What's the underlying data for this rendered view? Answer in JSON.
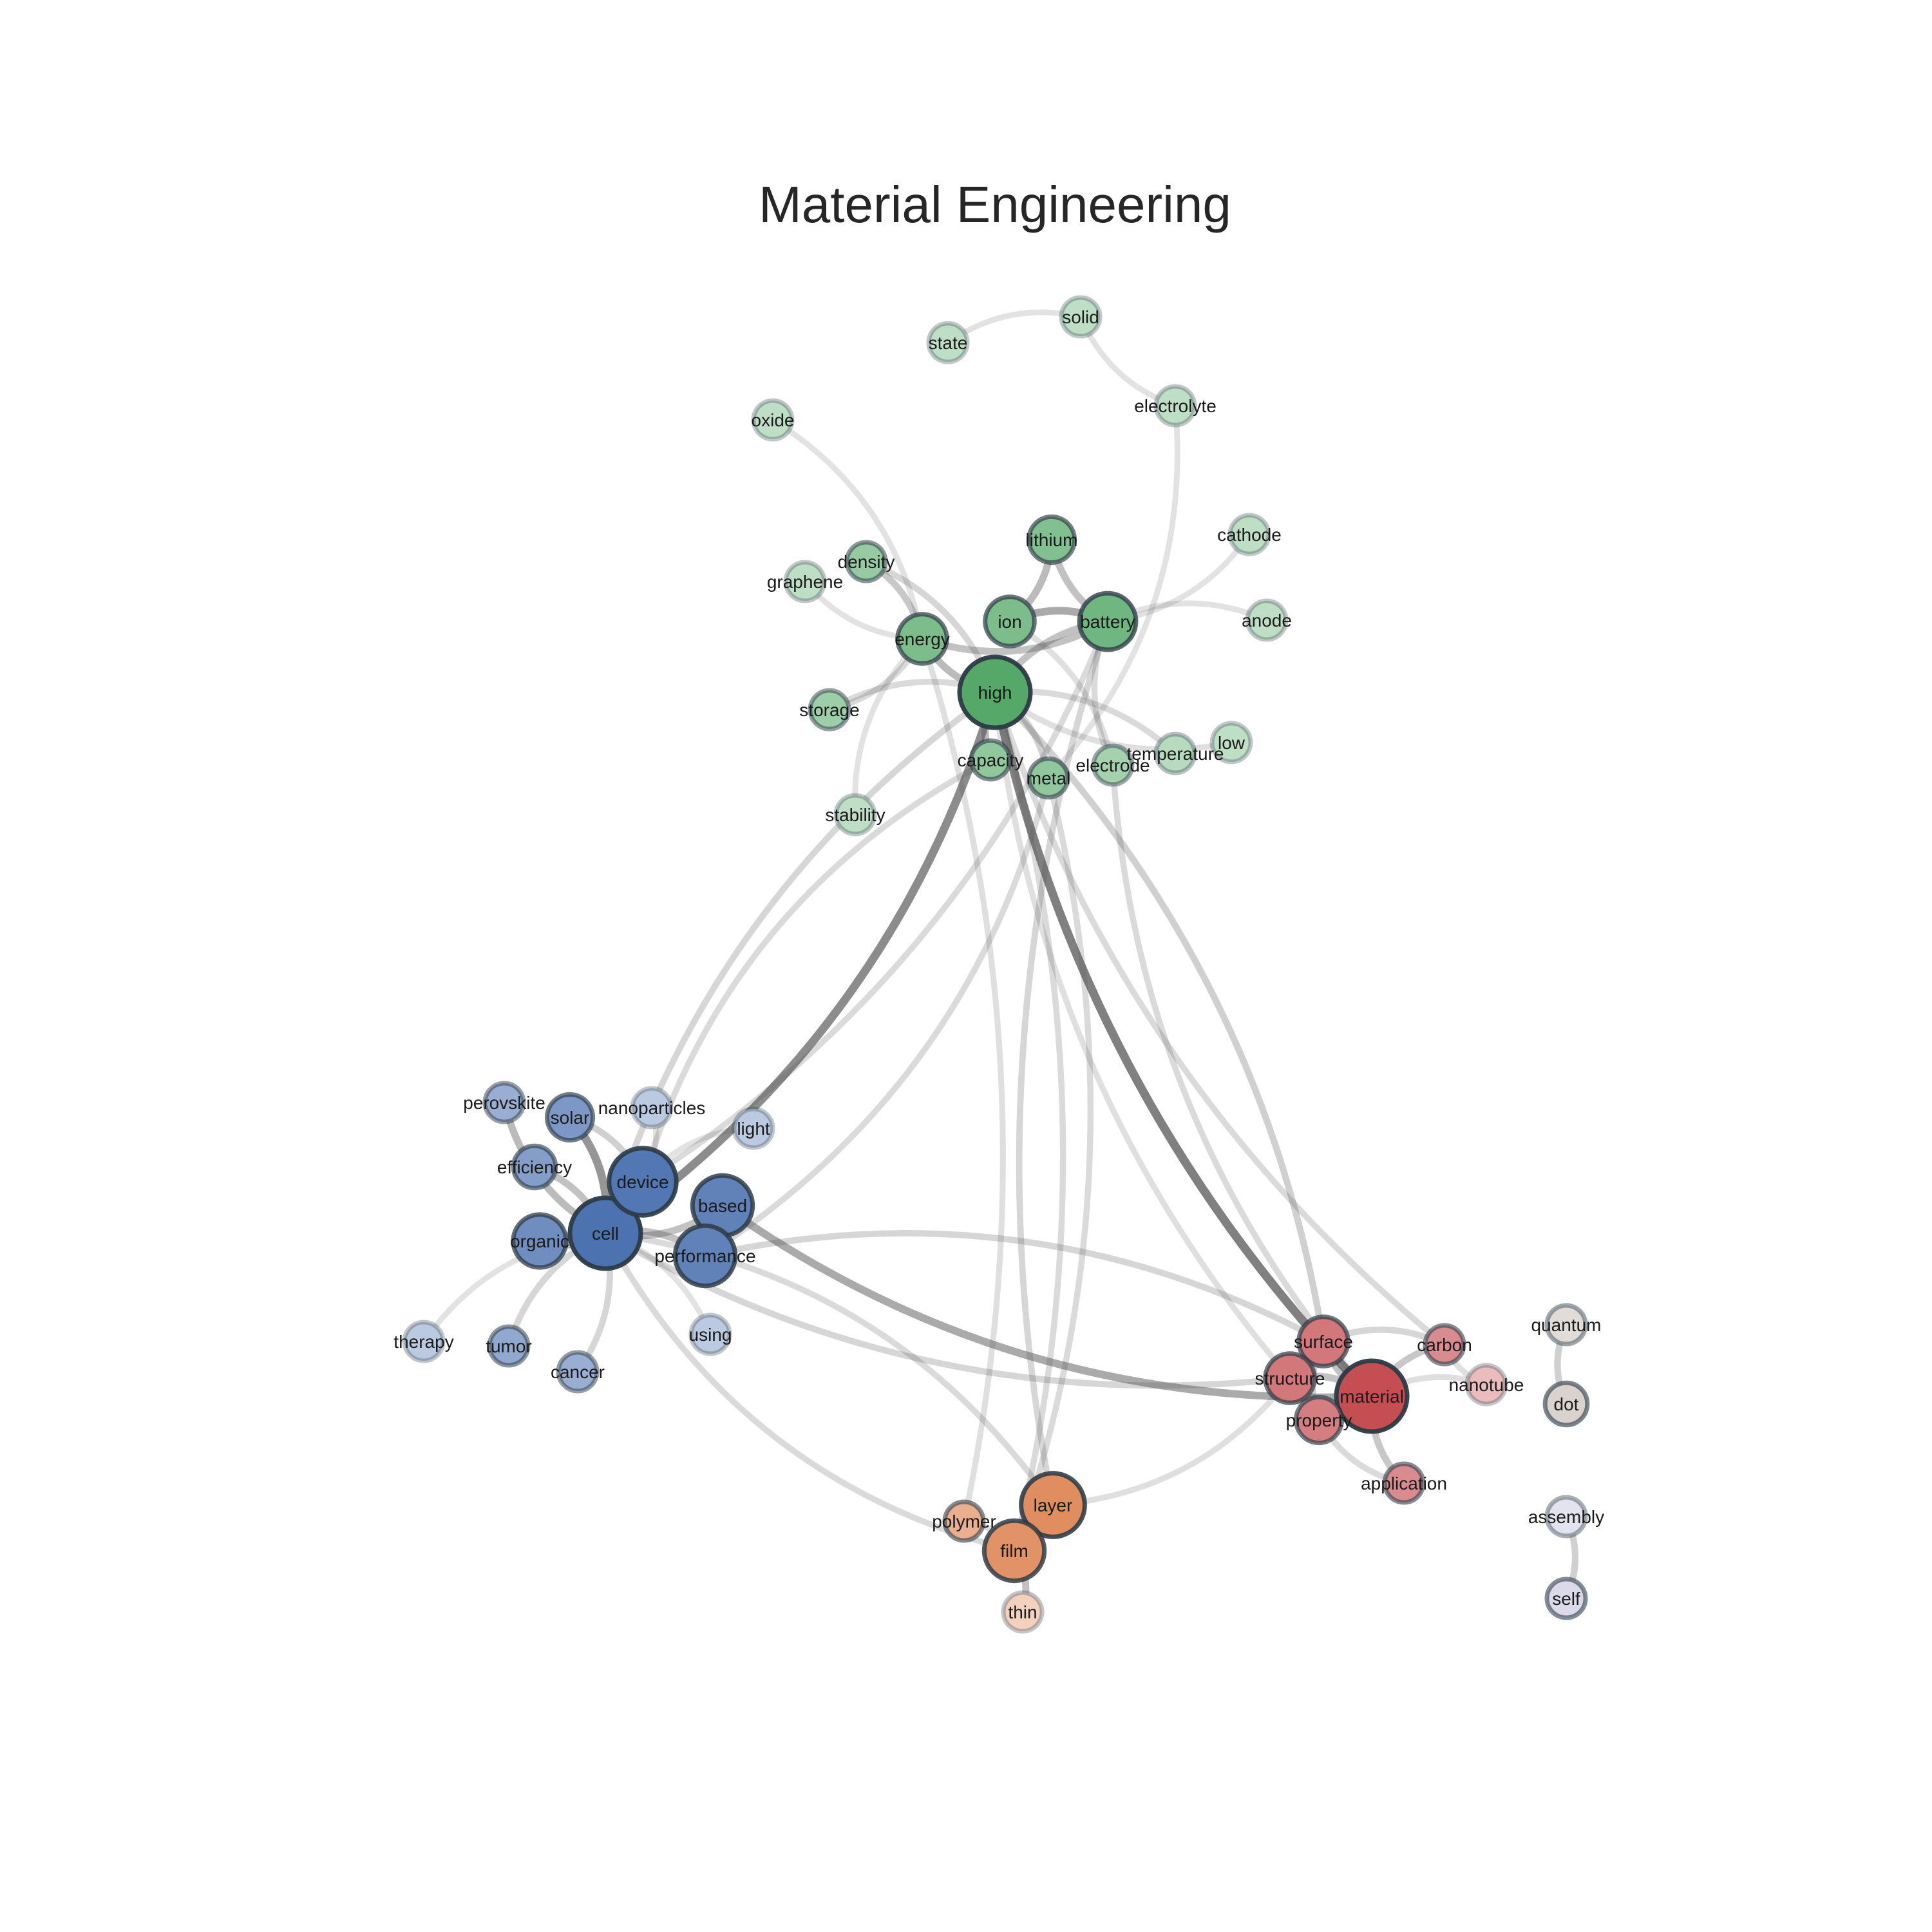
{
  "title": "Material Engineering",
  "edge_color": "#555555",
  "node_border_color": "#2b3a45",
  "communities": {
    "energy": {
      "base_color": "#55a868"
    },
    "device": {
      "base_color": "#4c72b0"
    },
    "material": {
      "base_color": "#c44e52"
    },
    "film": {
      "base_color": "#dd8452"
    },
    "quantum": {
      "base_color": "#c9bdb6"
    },
    "assembly": {
      "base_color": "#c6c6e0"
    }
  },
  "nodes": [
    {
      "id": "high",
      "label": "high",
      "community": "energy",
      "weight": 1.0
    },
    {
      "id": "battery",
      "label": "battery",
      "community": "energy",
      "weight": 0.8
    },
    {
      "id": "energy",
      "label": "energy",
      "community": "energy",
      "weight": 0.7
    },
    {
      "id": "ion",
      "label": "ion",
      "community": "energy",
      "weight": 0.7
    },
    {
      "id": "lithium",
      "label": "lithium",
      "community": "energy",
      "weight": 0.65
    },
    {
      "id": "metal",
      "label": "metal",
      "community": "energy",
      "weight": 0.55
    },
    {
      "id": "capacity",
      "label": "capacity",
      "community": "energy",
      "weight": 0.55
    },
    {
      "id": "density",
      "label": "density",
      "community": "energy",
      "weight": 0.5
    },
    {
      "id": "storage",
      "label": "storage",
      "community": "energy",
      "weight": 0.45
    },
    {
      "id": "electrode",
      "label": "electrode",
      "community": "energy",
      "weight": 0.4
    },
    {
      "id": "temperature",
      "label": "temperature",
      "community": "energy",
      "weight": 0.25
    },
    {
      "id": "low",
      "label": "low",
      "community": "energy",
      "weight": 0.2
    },
    {
      "id": "stability",
      "label": "stability",
      "community": "energy",
      "weight": 0.2
    },
    {
      "id": "graphene",
      "label": "graphene",
      "community": "energy",
      "weight": 0.2
    },
    {
      "id": "oxide",
      "label": "oxide",
      "community": "energy",
      "weight": 0.2
    },
    {
      "id": "state",
      "label": "state",
      "community": "energy",
      "weight": 0.2
    },
    {
      "id": "solid",
      "label": "solid",
      "community": "energy",
      "weight": 0.2
    },
    {
      "id": "electrolyte",
      "label": "electrolyte",
      "community": "energy",
      "weight": 0.2
    },
    {
      "id": "cathode",
      "label": "cathode",
      "community": "energy",
      "weight": 0.2
    },
    {
      "id": "anode",
      "label": "anode",
      "community": "energy",
      "weight": 0.2
    },
    {
      "id": "cell",
      "label": "cell",
      "community": "device",
      "weight": 1.0
    },
    {
      "id": "device",
      "label": "device",
      "community": "device",
      "weight": 0.95
    },
    {
      "id": "based",
      "label": "based",
      "community": "device",
      "weight": 0.85
    },
    {
      "id": "performance",
      "label": "performance",
      "community": "device",
      "weight": 0.85
    },
    {
      "id": "organic",
      "label": "organic",
      "community": "device",
      "weight": 0.75
    },
    {
      "id": "solar",
      "label": "solar",
      "community": "device",
      "weight": 0.65
    },
    {
      "id": "efficiency",
      "label": "efficiency",
      "community": "device",
      "weight": 0.6
    },
    {
      "id": "tumor",
      "label": "tumor",
      "community": "device",
      "weight": 0.5
    },
    {
      "id": "perovskite",
      "label": "perovskite",
      "community": "device",
      "weight": 0.45
    },
    {
      "id": "cancer",
      "label": "cancer",
      "community": "device",
      "weight": 0.45
    },
    {
      "id": "light",
      "label": "light",
      "community": "device",
      "weight": 0.2
    },
    {
      "id": "nanoparticles",
      "label": "nanoparticles",
      "community": "device",
      "weight": 0.2
    },
    {
      "id": "using",
      "label": "using",
      "community": "device",
      "weight": 0.2
    },
    {
      "id": "therapy",
      "label": "therapy",
      "community": "device",
      "weight": 0.2
    },
    {
      "id": "material",
      "label": "material",
      "community": "material",
      "weight": 1.0
    },
    {
      "id": "surface",
      "label": "surface",
      "community": "material",
      "weight": 0.7
    },
    {
      "id": "structure",
      "label": "structure",
      "community": "material",
      "weight": 0.7
    },
    {
      "id": "property",
      "label": "property",
      "community": "material",
      "weight": 0.65
    },
    {
      "id": "carbon",
      "label": "carbon",
      "community": "material",
      "weight": 0.55
    },
    {
      "id": "application",
      "label": "application",
      "community": "material",
      "weight": 0.55
    },
    {
      "id": "nanotube",
      "label": "nanotube",
      "community": "material",
      "weight": 0.2
    },
    {
      "id": "layer",
      "label": "layer",
      "community": "film",
      "weight": 0.9
    },
    {
      "id": "film",
      "label": "film",
      "community": "film",
      "weight": 0.85
    },
    {
      "id": "polymer",
      "label": "polymer",
      "community": "film",
      "weight": 0.55
    },
    {
      "id": "thin",
      "label": "thin",
      "community": "film",
      "weight": 0.2
    },
    {
      "id": "quantum",
      "label": "quantum",
      "community": "quantum",
      "weight": 0.4
    },
    {
      "id": "dot",
      "label": "dot",
      "community": "quantum",
      "weight": 0.6
    },
    {
      "id": "assembly",
      "label": "assembly",
      "community": "assembly",
      "weight": 0.35
    },
    {
      "id": "self",
      "label": "self",
      "community": "assembly",
      "weight": 0.55
    }
  ],
  "edges": [
    {
      "source": "high",
      "target": "cell",
      "weight": 0.85
    },
    {
      "source": "high",
      "target": "material",
      "weight": 0.9
    },
    {
      "source": "high",
      "target": "energy",
      "weight": 0.6
    },
    {
      "source": "high",
      "target": "capacity",
      "weight": 0.6
    },
    {
      "source": "high",
      "target": "metal",
      "weight": 0.45
    },
    {
      "source": "high",
      "target": "storage",
      "weight": 0.35
    },
    {
      "source": "high",
      "target": "temperature",
      "weight": 0.35
    },
    {
      "source": "high",
      "target": "low",
      "weight": 0.3
    },
    {
      "source": "high",
      "target": "battery",
      "weight": 0.55
    },
    {
      "source": "high",
      "target": "density",
      "weight": 0.4
    },
    {
      "source": "high",
      "target": "surface",
      "weight": 0.45
    },
    {
      "source": "high",
      "target": "structure",
      "weight": 0.3
    },
    {
      "source": "high",
      "target": "film",
      "weight": 0.35
    },
    {
      "source": "battery",
      "target": "ion",
      "weight": 0.7
    },
    {
      "source": "battery",
      "target": "lithium",
      "weight": 0.55
    },
    {
      "source": "battery",
      "target": "cathode",
      "weight": 0.25
    },
    {
      "source": "battery",
      "target": "anode",
      "weight": 0.25
    },
    {
      "source": "battery",
      "target": "electrode",
      "weight": 0.35
    },
    {
      "source": "battery",
      "target": "energy",
      "weight": 0.55
    },
    {
      "source": "battery",
      "target": "layer",
      "weight": 0.4
    },
    {
      "source": "battery",
      "target": "device",
      "weight": 0.35
    },
    {
      "source": "ion",
      "target": "lithium",
      "weight": 0.6
    },
    {
      "source": "ion",
      "target": "electrode",
      "weight": 0.3
    },
    {
      "source": "energy",
      "target": "density",
      "weight": 0.5
    },
    {
      "source": "energy",
      "target": "storage",
      "weight": 0.35
    },
    {
      "source": "energy",
      "target": "stability",
      "weight": 0.25
    },
    {
      "source": "energy",
      "target": "graphene",
      "weight": 0.25
    },
    {
      "source": "energy",
      "target": "oxide",
      "weight": 0.25
    },
    {
      "source": "energy",
      "target": "polymer",
      "weight": 0.3
    },
    {
      "source": "capacity",
      "target": "device",
      "weight": 0.35
    },
    {
      "source": "metal",
      "target": "performance",
      "weight": 0.35
    },
    {
      "source": "metal",
      "target": "electrolyte",
      "weight": 0.25
    },
    {
      "source": "metal",
      "target": "film",
      "weight": 0.35
    },
    {
      "source": "electrode",
      "target": "material",
      "weight": 0.35
    },
    {
      "source": "state",
      "target": "solid",
      "weight": 0.25
    },
    {
      "source": "solid",
      "target": "electrolyte",
      "weight": 0.25
    },
    {
      "source": "cell",
      "target": "device",
      "weight": 0.85
    },
    {
      "source": "cell",
      "target": "solar",
      "weight": 0.8
    },
    {
      "source": "cell",
      "target": "perovskite",
      "weight": 0.6
    },
    {
      "source": "cell",
      "target": "efficiency",
      "weight": 0.55
    },
    {
      "source": "cell",
      "target": "organic",
      "weight": 0.65
    },
    {
      "source": "cell",
      "target": "based",
      "weight": 0.55
    },
    {
      "source": "cell",
      "target": "performance",
      "weight": 0.55
    },
    {
      "source": "cell",
      "target": "tumor",
      "weight": 0.4
    },
    {
      "source": "cell",
      "target": "cancer",
      "weight": 0.4
    },
    {
      "source": "cell",
      "target": "therapy",
      "weight": 0.25
    },
    {
      "source": "cell",
      "target": "using",
      "weight": 0.25
    },
    {
      "source": "cell",
      "target": "film",
      "weight": 0.35
    },
    {
      "source": "cell",
      "target": "layer",
      "weight": 0.35
    },
    {
      "source": "cell",
      "target": "structure",
      "weight": 0.4
    },
    {
      "source": "cell",
      "target": "high",
      "weight": 0.4
    },
    {
      "source": "device",
      "target": "solar",
      "weight": 0.45
    },
    {
      "source": "device",
      "target": "organic",
      "weight": 0.5
    },
    {
      "source": "device",
      "target": "nanoparticles",
      "weight": 0.25
    },
    {
      "source": "device",
      "target": "light",
      "weight": 0.25
    },
    {
      "source": "based",
      "target": "material",
      "weight": 0.7
    },
    {
      "source": "performance",
      "target": "surface",
      "weight": 0.4
    },
    {
      "source": "surface",
      "target": "material",
      "weight": 0.55
    },
    {
      "source": "surface",
      "target": "carbon",
      "weight": 0.4
    },
    {
      "source": "surface",
      "target": "property",
      "weight": 0.45
    },
    {
      "source": "structure",
      "target": "material",
      "weight": 0.55
    },
    {
      "source": "structure",
      "target": "property",
      "weight": 0.4
    },
    {
      "source": "structure",
      "target": "layer",
      "weight": 0.3
    },
    {
      "source": "material",
      "target": "property",
      "weight": 0.55
    },
    {
      "source": "material",
      "target": "carbon",
      "weight": 0.5
    },
    {
      "source": "material",
      "target": "application",
      "weight": 0.5
    },
    {
      "source": "material",
      "target": "nanotube",
      "weight": 0.3
    },
    {
      "source": "carbon",
      "target": "nanotube",
      "weight": 0.3
    },
    {
      "source": "carbon",
      "target": "high",
      "weight": 0.35
    },
    {
      "source": "property",
      "target": "application",
      "weight": 0.35
    },
    {
      "source": "film",
      "target": "thin",
      "weight": 0.55
    },
    {
      "source": "film",
      "target": "polymer",
      "weight": 0.35
    },
    {
      "source": "film",
      "target": "layer",
      "weight": 0.3
    },
    {
      "source": "quantum",
      "target": "dot",
      "weight": 0.45
    },
    {
      "source": "assembly",
      "target": "self",
      "weight": 0.45
    }
  ]
}
